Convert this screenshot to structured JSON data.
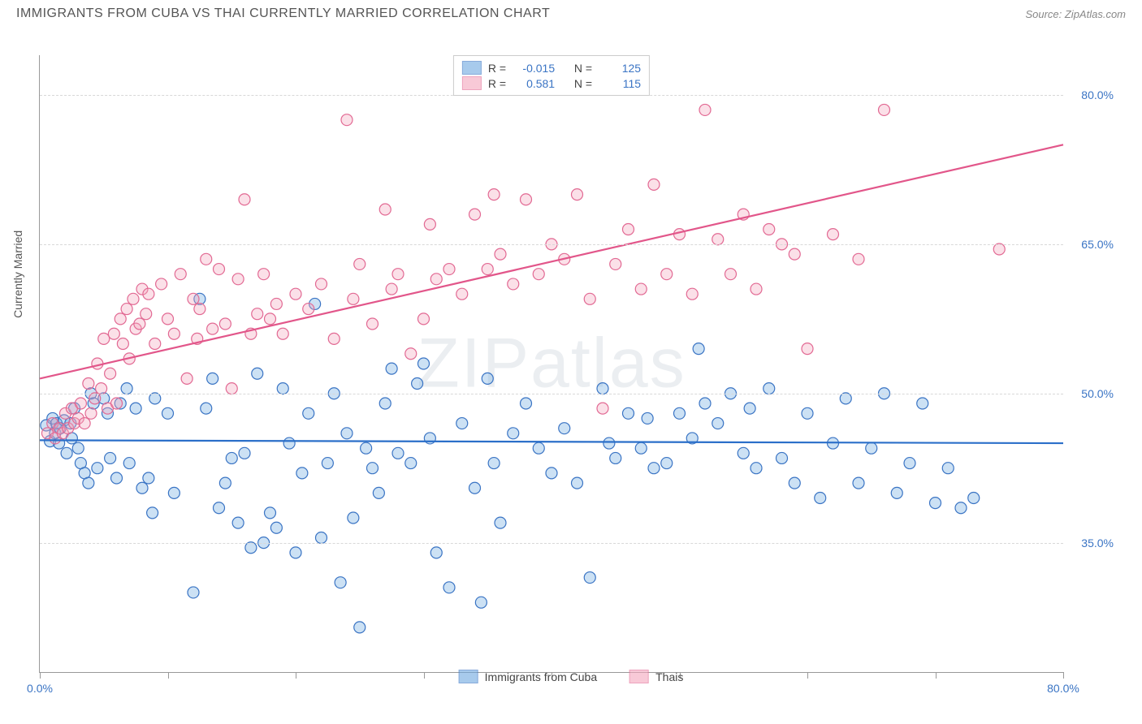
{
  "title": "IMMIGRANTS FROM CUBA VS THAI CURRENTLY MARRIED CORRELATION CHART",
  "source": "Source: ZipAtlas.com",
  "watermark": "ZIPatlas",
  "chart": {
    "type": "scatter",
    "xlim": [
      0,
      80
    ],
    "ylim": [
      22,
      84
    ],
    "xticks": [
      0,
      10,
      20,
      30,
      40,
      50,
      60,
      70,
      80
    ],
    "xtick_labels": {
      "0": "0.0%",
      "80": "80.0%"
    },
    "yticks": [
      35,
      50,
      65,
      80
    ],
    "ytick_labels": {
      "35": "35.0%",
      "50": "50.0%",
      "65": "65.0%",
      "80": "80.0%"
    },
    "yaxis_label": "Currently Married",
    "grid_color": "#d8d8d8",
    "axis_color": "#999999",
    "background_color": "#ffffff",
    "label_color": "#3a74c4",
    "marker_radius": 7,
    "marker_fill_opacity": 0.35,
    "marker_stroke_width": 1.2,
    "line_width": 2.2,
    "series": [
      {
        "name": "Immigrants from Cuba",
        "color": "#6ea8e0",
        "stroke": "#3a74c4",
        "line_color": "#2b6fc9",
        "R": "-0.015",
        "N": "125",
        "regression": {
          "x1": 0,
          "y1": 45.3,
          "x2": 80,
          "y2": 45.0
        },
        "points": [
          [
            0.5,
            46.8
          ],
          [
            0.8,
            45.2
          ],
          [
            1.0,
            47.5
          ],
          [
            1.2,
            46.0
          ],
          [
            1.3,
            47.0
          ],
          [
            1.5,
            45.0
          ],
          [
            1.6,
            46.5
          ],
          [
            1.9,
            47.3
          ],
          [
            2.1,
            44.0
          ],
          [
            2.4,
            47.0
          ],
          [
            2.5,
            45.5
          ],
          [
            2.7,
            48.5
          ],
          [
            3.0,
            44.5
          ],
          [
            3.2,
            43.0
          ],
          [
            3.5,
            42.0
          ],
          [
            3.8,
            41.0
          ],
          [
            4.0,
            50.0
          ],
          [
            4.2,
            49.0
          ],
          [
            4.5,
            42.5
          ],
          [
            5.0,
            49.5
          ],
          [
            5.3,
            48.0
          ],
          [
            5.5,
            43.5
          ],
          [
            6.0,
            41.5
          ],
          [
            6.3,
            49.0
          ],
          [
            6.8,
            50.5
          ],
          [
            7.0,
            43.0
          ],
          [
            7.5,
            48.5
          ],
          [
            8.0,
            40.5
          ],
          [
            8.5,
            41.5
          ],
          [
            8.8,
            38.0
          ],
          [
            9.0,
            49.5
          ],
          [
            10.0,
            48.0
          ],
          [
            10.5,
            40.0
          ],
          [
            12.0,
            30.0
          ],
          [
            12.5,
            59.5
          ],
          [
            13.0,
            48.5
          ],
          [
            13.5,
            51.5
          ],
          [
            14.0,
            38.5
          ],
          [
            14.5,
            41.0
          ],
          [
            15.0,
            43.5
          ],
          [
            15.5,
            37.0
          ],
          [
            16.0,
            44.0
          ],
          [
            16.5,
            34.5
          ],
          [
            17.0,
            52.0
          ],
          [
            17.5,
            35.0
          ],
          [
            18.0,
            38.0
          ],
          [
            18.5,
            36.5
          ],
          [
            19.0,
            50.5
          ],
          [
            19.5,
            45.0
          ],
          [
            20.0,
            34.0
          ],
          [
            20.5,
            42.0
          ],
          [
            21.0,
            48.0
          ],
          [
            21.5,
            59.0
          ],
          [
            22.0,
            35.5
          ],
          [
            22.5,
            43.0
          ],
          [
            23.0,
            50.0
          ],
          [
            23.5,
            31.0
          ],
          [
            24.0,
            46.0
          ],
          [
            24.5,
            37.5
          ],
          [
            25.0,
            26.5
          ],
          [
            25.5,
            44.5
          ],
          [
            26.0,
            42.5
          ],
          [
            26.5,
            40.0
          ],
          [
            27.0,
            49.0
          ],
          [
            27.5,
            52.5
          ],
          [
            28.0,
            44.0
          ],
          [
            29.0,
            43.0
          ],
          [
            29.5,
            51.0
          ],
          [
            30.0,
            53.0
          ],
          [
            30.5,
            45.5
          ],
          [
            31.0,
            34.0
          ],
          [
            32.0,
            30.5
          ],
          [
            33.0,
            47.0
          ],
          [
            34.0,
            40.5
          ],
          [
            34.5,
            29.0
          ],
          [
            35.0,
            51.5
          ],
          [
            35.5,
            43.0
          ],
          [
            36.0,
            37.0
          ],
          [
            37.0,
            46.0
          ],
          [
            38.0,
            49.0
          ],
          [
            39.0,
            44.5
          ],
          [
            40.0,
            42.0
          ],
          [
            41.0,
            46.5
          ],
          [
            42.0,
            41.0
          ],
          [
            43.0,
            31.5
          ],
          [
            44.0,
            50.5
          ],
          [
            44.5,
            45.0
          ],
          [
            45.0,
            43.5
          ],
          [
            46.0,
            48.0
          ],
          [
            47.0,
            44.5
          ],
          [
            47.5,
            47.5
          ],
          [
            48.0,
            42.5
          ],
          [
            49.0,
            43.0
          ],
          [
            50.0,
            48.0
          ],
          [
            51.0,
            45.5
          ],
          [
            51.5,
            54.5
          ],
          [
            52.0,
            49.0
          ],
          [
            53.0,
            47.0
          ],
          [
            54.0,
            50.0
          ],
          [
            55.0,
            44.0
          ],
          [
            55.5,
            48.5
          ],
          [
            56.0,
            42.5
          ],
          [
            57.0,
            50.5
          ],
          [
            58.0,
            43.5
          ],
          [
            59.0,
            41.0
          ],
          [
            60.0,
            48.0
          ],
          [
            61.0,
            39.5
          ],
          [
            62.0,
            45.0
          ],
          [
            63.0,
            49.5
          ],
          [
            64.0,
            41.0
          ],
          [
            65.0,
            44.5
          ],
          [
            66.0,
            50.0
          ],
          [
            67.0,
            40.0
          ],
          [
            68.0,
            43.0
          ],
          [
            69.0,
            49.0
          ],
          [
            70.0,
            39.0
          ],
          [
            71.0,
            42.5
          ],
          [
            72.0,
            38.5
          ],
          [
            73.0,
            39.5
          ]
        ]
      },
      {
        "name": "Thais",
        "color": "#f4a6bd",
        "stroke": "#e26993",
        "line_color": "#e2568a",
        "R": "0.581",
        "N": "115",
        "regression": {
          "x1": 0,
          "y1": 51.5,
          "x2": 80,
          "y2": 75.0
        },
        "points": [
          [
            0.6,
            46.0
          ],
          [
            1.0,
            47.0
          ],
          [
            1.2,
            45.5
          ],
          [
            1.5,
            46.5
          ],
          [
            1.8,
            46.0
          ],
          [
            2.0,
            48.0
          ],
          [
            2.2,
            46.5
          ],
          [
            2.5,
            48.5
          ],
          [
            2.7,
            47.0
          ],
          [
            3.0,
            47.5
          ],
          [
            3.2,
            49.0
          ],
          [
            3.5,
            47.0
          ],
          [
            3.8,
            51.0
          ],
          [
            4.0,
            48.0
          ],
          [
            4.3,
            49.5
          ],
          [
            4.5,
            53.0
          ],
          [
            4.8,
            50.5
          ],
          [
            5.0,
            55.5
          ],
          [
            5.3,
            48.5
          ],
          [
            5.5,
            52.0
          ],
          [
            5.8,
            56.0
          ],
          [
            6.0,
            49.0
          ],
          [
            6.3,
            57.5
          ],
          [
            6.5,
            55.0
          ],
          [
            6.8,
            58.5
          ],
          [
            7.0,
            53.5
          ],
          [
            7.3,
            59.5
          ],
          [
            7.5,
            56.5
          ],
          [
            7.8,
            57.0
          ],
          [
            8.0,
            60.5
          ],
          [
            8.3,
            58.0
          ],
          [
            8.5,
            60.0
          ],
          [
            9.0,
            55.0
          ],
          [
            9.5,
            61.0
          ],
          [
            10.0,
            57.5
          ],
          [
            10.5,
            56.0
          ],
          [
            11.0,
            62.0
          ],
          [
            11.5,
            51.5
          ],
          [
            12.0,
            59.5
          ],
          [
            12.3,
            55.5
          ],
          [
            12.5,
            58.5
          ],
          [
            13.0,
            63.5
          ],
          [
            13.5,
            56.5
          ],
          [
            14.0,
            62.5
          ],
          [
            14.5,
            57.0
          ],
          [
            15.0,
            50.5
          ],
          [
            15.5,
            61.5
          ],
          [
            16.0,
            69.5
          ],
          [
            16.5,
            56.0
          ],
          [
            17.0,
            58.0
          ],
          [
            17.5,
            62.0
          ],
          [
            18.0,
            57.5
          ],
          [
            18.5,
            59.0
          ],
          [
            19.0,
            56.0
          ],
          [
            20.0,
            60.0
          ],
          [
            21.0,
            58.5
          ],
          [
            22.0,
            61.0
          ],
          [
            23.0,
            55.5
          ],
          [
            24.0,
            77.5
          ],
          [
            24.5,
            59.5
          ],
          [
            25.0,
            63.0
          ],
          [
            26.0,
            57.0
          ],
          [
            27.0,
            68.5
          ],
          [
            27.5,
            60.5
          ],
          [
            28.0,
            62.0
          ],
          [
            29.0,
            54.0
          ],
          [
            30.0,
            57.5
          ],
          [
            30.5,
            67.0
          ],
          [
            31.0,
            61.5
          ],
          [
            32.0,
            62.5
          ],
          [
            33.0,
            60.0
          ],
          [
            34.0,
            68.0
          ],
          [
            35.0,
            62.5
          ],
          [
            35.5,
            70.0
          ],
          [
            36.0,
            64.0
          ],
          [
            37.0,
            61.0
          ],
          [
            38.0,
            69.5
          ],
          [
            39.0,
            62.0
          ],
          [
            40.0,
            65.0
          ],
          [
            41.0,
            63.5
          ],
          [
            42.0,
            70.0
          ],
          [
            43.0,
            59.5
          ],
          [
            44.0,
            48.5
          ],
          [
            45.0,
            63.0
          ],
          [
            46.0,
            66.5
          ],
          [
            47.0,
            60.5
          ],
          [
            48.0,
            71.0
          ],
          [
            49.0,
            62.0
          ],
          [
            50.0,
            66.0
          ],
          [
            51.0,
            60.0
          ],
          [
            52.0,
            78.5
          ],
          [
            53.0,
            65.5
          ],
          [
            54.0,
            62.0
          ],
          [
            55.0,
            68.0
          ],
          [
            56.0,
            60.5
          ],
          [
            57.0,
            66.5
          ],
          [
            58.0,
            65.0
          ],
          [
            59.0,
            64.0
          ],
          [
            60.0,
            54.5
          ],
          [
            62.0,
            66.0
          ],
          [
            64.0,
            63.5
          ],
          [
            66.0,
            78.5
          ],
          [
            75.0,
            64.5
          ]
        ]
      }
    ],
    "legend_top": {
      "r_label": "R =",
      "n_label": "N ="
    },
    "legend_bottom": [
      {
        "swatch": 0,
        "label": "Immigrants from Cuba"
      },
      {
        "swatch": 1,
        "label": "Thais"
      }
    ]
  }
}
